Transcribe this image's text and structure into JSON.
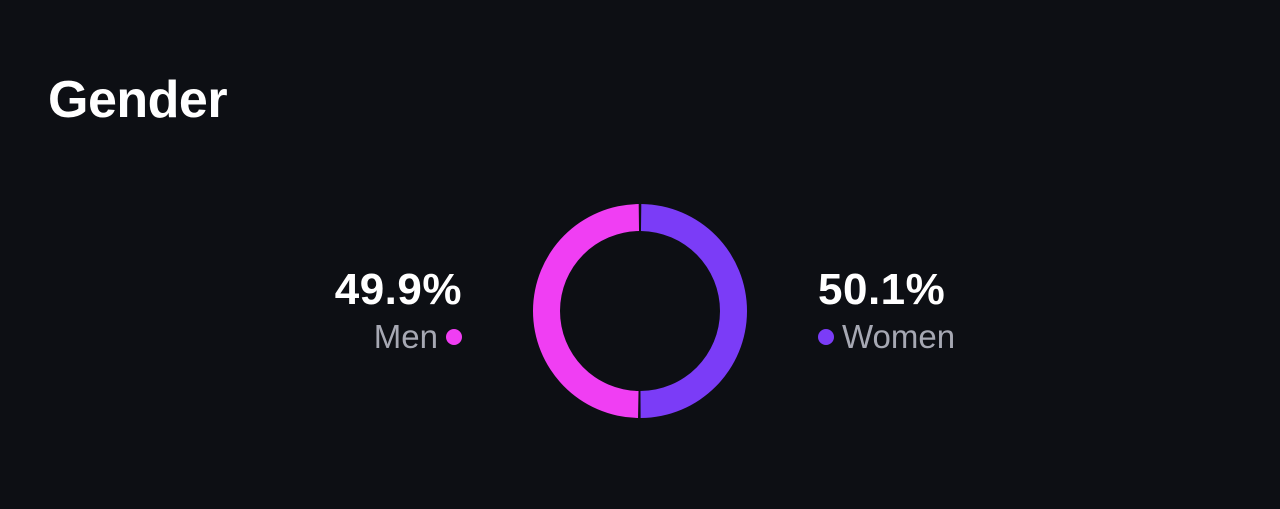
{
  "title": "Gender",
  "chart_data": {
    "type": "pie",
    "style": "donut",
    "categories": [
      "Men",
      "Women"
    ],
    "values": [
      49.9,
      50.1
    ],
    "labels": [
      "49.9%",
      "50.1%"
    ],
    "colors": [
      "#f03ef3",
      "#7b3cf7"
    ]
  }
}
